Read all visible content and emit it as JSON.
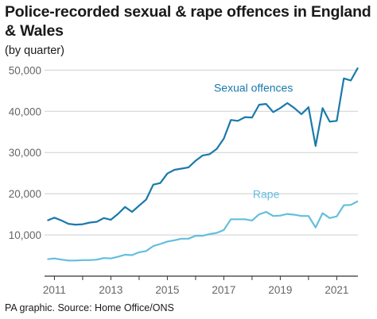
{
  "title": "Police-recorded sexual & rape offences in England & Wales",
  "subtitle": "(by quarter)",
  "source": "PA graphic. Source: Home Office/ONS",
  "chart_data": {
    "type": "line",
    "ylim": [
      0,
      52000
    ],
    "xlim": [
      2010.65,
      2021.75
    ],
    "grid": true,
    "y_ticks": [
      10000,
      20000,
      30000,
      40000,
      50000
    ],
    "y_tick_labels": [
      "10,000",
      "20,000",
      "30,000",
      "40,000",
      "50,000"
    ],
    "x_ticks": [
      2011,
      2013,
      2015,
      2017,
      2019,
      2021
    ],
    "x_tick_labels": [
      "2011",
      "2013",
      "2015",
      "2017",
      "2019",
      "2021"
    ],
    "series": [
      {
        "name": "Sexual offences",
        "color": "#1a7aab",
        "points": [
          [
            2010.75,
            13500
          ],
          [
            2011.0,
            14200
          ],
          [
            2011.25,
            13500
          ],
          [
            2011.5,
            12700
          ],
          [
            2011.75,
            12500
          ],
          [
            2012.0,
            12600
          ],
          [
            2012.25,
            13000
          ],
          [
            2012.5,
            13200
          ],
          [
            2012.75,
            14100
          ],
          [
            2013.0,
            13700
          ],
          [
            2013.25,
            15100
          ],
          [
            2013.5,
            16800
          ],
          [
            2013.75,
            15600
          ],
          [
            2014.0,
            17100
          ],
          [
            2014.25,
            18600
          ],
          [
            2014.5,
            22200
          ],
          [
            2014.75,
            22600
          ],
          [
            2015.0,
            24900
          ],
          [
            2015.25,
            25800
          ],
          [
            2015.5,
            26100
          ],
          [
            2015.75,
            26400
          ],
          [
            2016.0,
            28000
          ],
          [
            2016.25,
            29300
          ],
          [
            2016.5,
            29600
          ],
          [
            2016.75,
            30900
          ],
          [
            2017.0,
            33400
          ],
          [
            2017.25,
            37900
          ],
          [
            2017.5,
            37700
          ],
          [
            2017.75,
            38600
          ],
          [
            2018.0,
            38500
          ],
          [
            2018.25,
            41600
          ],
          [
            2018.5,
            41800
          ],
          [
            2018.75,
            39800
          ],
          [
            2019.0,
            40800
          ],
          [
            2019.25,
            42000
          ],
          [
            2019.5,
            40800
          ],
          [
            2019.75,
            39300
          ],
          [
            2020.0,
            41000
          ],
          [
            2020.25,
            31600
          ],
          [
            2020.5,
            40800
          ],
          [
            2020.75,
            37500
          ],
          [
            2021.0,
            37700
          ],
          [
            2021.25,
            48000
          ],
          [
            2021.5,
            47500
          ],
          [
            2021.75,
            50600
          ]
        ]
      },
      {
        "name": "Rape",
        "color": "#64bede",
        "points": [
          [
            2010.75,
            4100
          ],
          [
            2011.0,
            4300
          ],
          [
            2011.25,
            4000
          ],
          [
            2011.5,
            3800
          ],
          [
            2011.75,
            3800
          ],
          [
            2012.0,
            3900
          ],
          [
            2012.25,
            3900
          ],
          [
            2012.5,
            4000
          ],
          [
            2012.75,
            4400
          ],
          [
            2013.0,
            4300
          ],
          [
            2013.25,
            4700
          ],
          [
            2013.5,
            5200
          ],
          [
            2013.75,
            5100
          ],
          [
            2014.0,
            5800
          ],
          [
            2014.25,
            6100
          ],
          [
            2014.5,
            7300
          ],
          [
            2014.75,
            7800
          ],
          [
            2015.0,
            8400
          ],
          [
            2015.25,
            8700
          ],
          [
            2015.5,
            9100
          ],
          [
            2015.75,
            9100
          ],
          [
            2016.0,
            9800
          ],
          [
            2016.25,
            9800
          ],
          [
            2016.5,
            10200
          ],
          [
            2016.75,
            10500
          ],
          [
            2017.0,
            11200
          ],
          [
            2017.25,
            13800
          ],
          [
            2017.5,
            13800
          ],
          [
            2017.75,
            13800
          ],
          [
            2018.0,
            13500
          ],
          [
            2018.25,
            15000
          ],
          [
            2018.5,
            15600
          ],
          [
            2018.75,
            14600
          ],
          [
            2019.0,
            14700
          ],
          [
            2019.25,
            15100
          ],
          [
            2019.5,
            14900
          ],
          [
            2019.75,
            14600
          ],
          [
            2020.0,
            14600
          ],
          [
            2020.25,
            11800
          ],
          [
            2020.5,
            15300
          ],
          [
            2020.75,
            14100
          ],
          [
            2021.0,
            14500
          ],
          [
            2021.25,
            17200
          ],
          [
            2021.5,
            17300
          ],
          [
            2021.75,
            18200
          ]
        ]
      }
    ],
    "annotations": [
      {
        "text": "Sexual offences",
        "series": 0,
        "x": 2018.05,
        "y": 44800,
        "anchor": "middle"
      },
      {
        "text": "Rape",
        "series": 1,
        "x": 2018.5,
        "y": 19000,
        "anchor": "middle"
      }
    ]
  }
}
